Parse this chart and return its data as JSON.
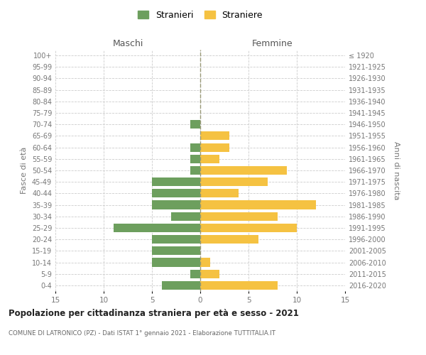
{
  "age_groups": [
    "0-4",
    "5-9",
    "10-14",
    "15-19",
    "20-24",
    "25-29",
    "30-34",
    "35-39",
    "40-44",
    "45-49",
    "50-54",
    "55-59",
    "60-64",
    "65-69",
    "70-74",
    "75-79",
    "80-84",
    "85-89",
    "90-94",
    "95-99",
    "100+"
  ],
  "birth_years": [
    "2016-2020",
    "2011-2015",
    "2006-2010",
    "2001-2005",
    "1996-2000",
    "1991-1995",
    "1986-1990",
    "1981-1985",
    "1976-1980",
    "1971-1975",
    "1966-1970",
    "1961-1965",
    "1956-1960",
    "1951-1955",
    "1946-1950",
    "1941-1945",
    "1936-1940",
    "1931-1935",
    "1926-1930",
    "1921-1925",
    "≤ 1920"
  ],
  "males": [
    4,
    1,
    5,
    5,
    5,
    9,
    3,
    5,
    5,
    5,
    1,
    1,
    1,
    0,
    1,
    0,
    0,
    0,
    0,
    0,
    0
  ],
  "females": [
    8,
    2,
    1,
    0,
    6,
    10,
    8,
    12,
    4,
    7,
    9,
    2,
    3,
    3,
    0,
    0,
    0,
    0,
    0,
    0,
    0
  ],
  "male_color": "#6d9f5e",
  "female_color": "#f5c242",
  "background_color": "#ffffff",
  "grid_color": "#cccccc",
  "title": "Popolazione per cittadinanza straniera per età e sesso - 2021",
  "subtitle": "COMUNE DI LATRONICO (PZ) - Dati ISTAT 1° gennaio 2021 - Elaborazione TUTTITALIA.IT",
  "legend_male": "Stranieri",
  "legend_female": "Straniere",
  "xlabel_left": "Maschi",
  "xlabel_right": "Femmine",
  "ylabel_left": "Fasce di età",
  "ylabel_right": "Anni di nascita",
  "xlim": 15
}
